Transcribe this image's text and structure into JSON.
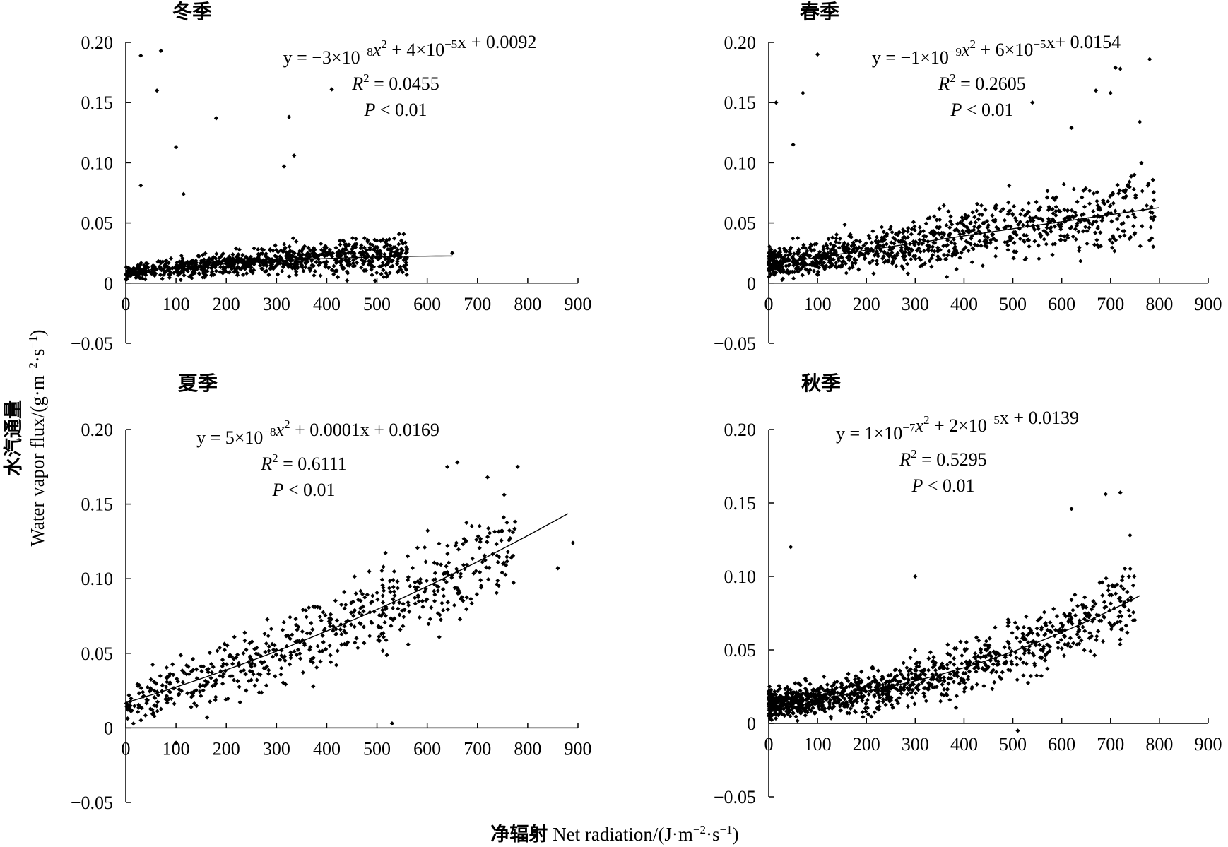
{
  "figure": {
    "ylabel_cn": "水汽通量",
    "ylabel_en": "Water vapor flux/(g·m",
    "ylabel_en_exp1": "−2",
    "ylabel_en_mid": "·s",
    "ylabel_en_exp2": "−1",
    "ylabel_en_end": ")",
    "xlabel_cn": "净辐射",
    "xlabel_en": " Net radiation/(J·m",
    "xlabel_en_exp1": "−2",
    "xlabel_en_mid": "·s",
    "xlabel_en_exp2": "−1",
    "xlabel_en_end": ")"
  },
  "chart_data": [
    {
      "type": "scatter",
      "title": "冬季",
      "x_ticks": [
        "0",
        "100",
        "200",
        "300",
        "400",
        "500",
        "600",
        "700",
        "800",
        "900"
      ],
      "y_ticks": [
        "0.20",
        "0.15",
        "0.10",
        "0.05",
        "0",
        "−0.05"
      ],
      "xlim": [
        0,
        900
      ],
      "ylim": [
        -0.05,
        0.2
      ],
      "equation": {
        "a": "−3×10",
        "a_exp": "−8",
        "b": " +  4×10",
        "b_exp": "−5",
        "c": "x + 0.0092"
      },
      "r2": "0.0455",
      "p": "0.01",
      "fit": {
        "a": -3e-08,
        "b": 4e-05,
        "c": 0.0092,
        "x_range": [
          0,
          650
        ]
      },
      "cloud": {
        "n": 900,
        "x_max": 560,
        "x_shape": 1.0,
        "y_noise": 0.011,
        "y_floor": 0.0,
        "seed": 11
      },
      "outliers": [
        [
          30,
          0.189
        ],
        [
          70,
          0.193
        ],
        [
          62,
          0.16
        ],
        [
          100,
          0.113
        ],
        [
          115,
          0.074
        ],
        [
          30,
          0.081
        ],
        [
          180,
          0.137
        ],
        [
          325,
          0.138
        ],
        [
          315,
          0.097
        ],
        [
          335,
          0.106
        ],
        [
          410,
          0.161
        ],
        [
          650,
          0.025
        ]
      ]
    },
    {
      "type": "scatter",
      "title": "春季",
      "x_ticks": [
        "0",
        "100",
        "200",
        "300",
        "400",
        "500",
        "600",
        "700",
        "800",
        "900"
      ],
      "y_ticks": [
        "0.20",
        "0.15",
        "0.10",
        "0.05",
        "0",
        "−0.05"
      ],
      "xlim": [
        0,
        900
      ],
      "ylim": [
        -0.05,
        0.2
      ],
      "equation": {
        "a": "−1×10",
        "a_exp": "−9",
        "b": " + 6×10",
        "b_exp": "−5",
        "c": "x+ 0.0154"
      },
      "r2": "0.2605",
      "p": "0.01",
      "fit": {
        "a": -1e-09,
        "b": 6e-05,
        "c": 0.0154,
        "x_range": [
          0,
          800
        ]
      },
      "cloud": {
        "n": 1000,
        "x_max": 790,
        "x_shape": 0.75,
        "y_noise": 0.022,
        "y_floor": 0.0,
        "seed": 23
      },
      "outliers": [
        [
          15,
          0.15
        ],
        [
          70,
          0.158
        ],
        [
          50,
          0.115
        ],
        [
          100,
          0.19
        ],
        [
          620,
          0.129
        ],
        [
          700,
          0.158
        ],
        [
          710,
          0.179
        ],
        [
          760,
          0.134
        ],
        [
          670,
          0.16
        ],
        [
          720,
          0.178
        ],
        [
          780,
          0.186
        ],
        [
          540,
          0.15
        ]
      ]
    },
    {
      "type": "scatter",
      "title": "夏季",
      "x_ticks": [
        "0",
        "100",
        "200",
        "300",
        "400",
        "500",
        "600",
        "700",
        "800",
        "900"
      ],
      "y_ticks": [
        "0.20",
        "0.15",
        "0.10",
        "0.05",
        "0",
        "−0.05"
      ],
      "xlim": [
        0,
        900
      ],
      "ylim": [
        -0.05,
        0.2
      ],
      "equation": {
        "a": "5×10",
        "a_exp": "−8",
        "b": " + 0.0001",
        "b_exp": "",
        "c": "x + 0.0169"
      },
      "r2": "0.6111",
      "p": "0.01",
      "fit": {
        "a": 5e-08,
        "b": 0.0001,
        "c": 0.0169,
        "x_range": [
          0,
          880
        ]
      },
      "cloud": {
        "n": 620,
        "x_max": 780,
        "x_shape": 0.9,
        "y_noise": 0.024,
        "y_floor": -0.003,
        "seed": 37
      },
      "outliers": [
        [
          640,
          0.175
        ],
        [
          660,
          0.178
        ],
        [
          780,
          0.175
        ],
        [
          720,
          0.168
        ],
        [
          890,
          0.124
        ],
        [
          860,
          0.107
        ],
        [
          100,
          -0.01
        ],
        [
          530,
          0.003
        ]
      ]
    },
    {
      "type": "scatter",
      "title": "秋季",
      "x_ticks": [
        "0",
        "100",
        "200",
        "300",
        "400",
        "500",
        "600",
        "700",
        "800",
        "900"
      ],
      "y_ticks": [
        "0.20",
        "0.15",
        "0.10",
        "0.05",
        "0",
        "−0.05"
      ],
      "xlim": [
        0,
        900
      ],
      "ylim": [
        -0.05,
        0.2
      ],
      "equation": {
        "a": "1×10",
        "a_exp": "−7",
        "b": " + 2×10",
        "b_exp": "−5",
        "c": "x + 0.0139"
      },
      "r2": "0.5295",
      "p": "0.01",
      "fit": {
        "a": 1e-07,
        "b": 2e-05,
        "c": 0.0139,
        "x_range": [
          0,
          760
        ]
      },
      "cloud": {
        "n": 1150,
        "x_max": 750,
        "x_shape": 0.62,
        "y_noise": 0.017,
        "y_floor": -0.006,
        "seed": 53
      },
      "outliers": [
        [
          45,
          0.12
        ],
        [
          690,
          0.156
        ],
        [
          720,
          0.157
        ],
        [
          740,
          0.128
        ],
        [
          620,
          0.146
        ],
        [
          300,
          0.1
        ],
        [
          510,
          -0.005
        ]
      ]
    }
  ]
}
